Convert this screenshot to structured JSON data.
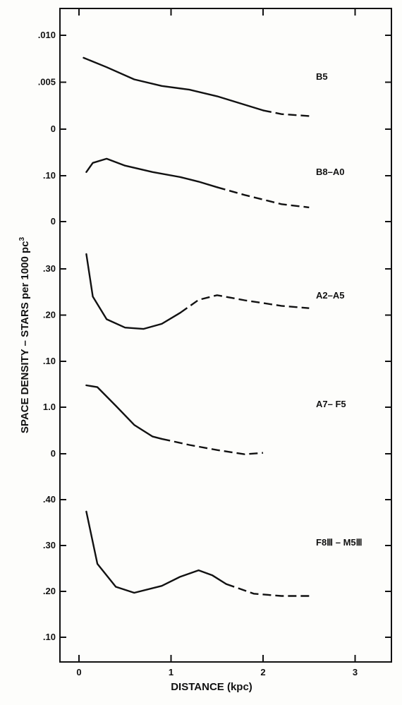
{
  "chart_data": {
    "type": "line",
    "xlabel": "DISTANCE (kpc)",
    "ylabel": "SPACE DENSITY – STARS per 1000 pc",
    "ylabel_superscript": "3",
    "xlim": [
      -0.05,
      3.4
    ],
    "x_ticks": [
      "0",
      "1",
      "2",
      "3"
    ],
    "panels": [
      {
        "name": "B5",
        "ylim": [
          0,
          0.0105
        ],
        "y_ticks": [
          {
            "value": 0.01,
            "label": ".010"
          },
          {
            "value": 0.005,
            "label": ".005"
          },
          {
            "value": 0,
            "label": "0"
          }
        ],
        "solid": [
          [
            0.05,
            0.0076
          ],
          [
            0.3,
            0.0066
          ],
          [
            0.6,
            0.0053
          ],
          [
            0.9,
            0.0046
          ],
          [
            1.2,
            0.0042
          ],
          [
            1.5,
            0.0035
          ],
          [
            1.8,
            0.0026
          ],
          [
            2.0,
            0.002
          ]
        ],
        "dashed": [
          [
            2.0,
            0.002
          ],
          [
            2.2,
            0.0016
          ],
          [
            2.5,
            0.0014
          ]
        ]
      },
      {
        "name": "B8–A0",
        "ylim": [
          0,
          0.18
        ],
        "y_ticks": [
          {
            "value": 0.1,
            "label": ".10"
          },
          {
            "value": 0,
            "label": "0"
          }
        ],
        "solid": [
          [
            0.08,
            0.108
          ],
          [
            0.15,
            0.128
          ],
          [
            0.3,
            0.137
          ],
          [
            0.5,
            0.122
          ],
          [
            0.8,
            0.108
          ],
          [
            1.1,
            0.097
          ],
          [
            1.3,
            0.087
          ],
          [
            1.5,
            0.075
          ]
        ],
        "dashed": [
          [
            1.5,
            0.075
          ],
          [
            1.8,
            0.058
          ],
          [
            2.2,
            0.038
          ],
          [
            2.5,
            0.031
          ]
        ]
      },
      {
        "name": "A2–A5",
        "ylim": [
          0.1,
          0.33
        ],
        "y_ticks": [
          {
            "value": 0.3,
            "label": ".30"
          },
          {
            "value": 0.2,
            "label": ".20"
          },
          {
            "value": 0.1,
            "label": ".10"
          }
        ],
        "solid": [
          [
            0.08,
            0.332
          ],
          [
            0.15,
            0.24
          ],
          [
            0.3,
            0.191
          ],
          [
            0.5,
            0.173
          ],
          [
            0.7,
            0.17
          ],
          [
            0.9,
            0.181
          ],
          [
            1.1,
            0.205
          ]
        ],
        "dashed": [
          [
            1.1,
            0.205
          ],
          [
            1.3,
            0.233
          ],
          [
            1.5,
            0.243
          ],
          [
            1.8,
            0.232
          ],
          [
            2.2,
            0.22
          ],
          [
            2.5,
            0.215
          ]
        ]
      },
      {
        "name": "A7– F5",
        "ylim": [
          -0.3,
          1.5
        ],
        "y_ticks": [
          {
            "value": 1.0,
            "label": "1.0"
          },
          {
            "value": 0,
            "label": "0"
          }
        ],
        "solid": [
          [
            0.08,
            1.47
          ],
          [
            0.2,
            1.43
          ],
          [
            0.4,
            1.03
          ],
          [
            0.6,
            0.62
          ],
          [
            0.8,
            0.37
          ],
          [
            0.9,
            0.32
          ]
        ],
        "dashed": [
          [
            0.9,
            0.32
          ],
          [
            1.2,
            0.19
          ],
          [
            1.5,
            0.08
          ],
          [
            1.8,
            -0.01
          ],
          [
            2.0,
            0.02
          ]
        ]
      },
      {
        "name": "F8Ⅲ – M5Ⅲ",
        "ylim": [
          0.05,
          0.43
        ],
        "y_ticks": [
          {
            "value": 0.4,
            "label": ".40"
          },
          {
            "value": 0.3,
            "label": ".30"
          },
          {
            "value": 0.2,
            "label": ".20"
          },
          {
            "value": 0.1,
            "label": ".10"
          }
        ],
        "solid": [
          [
            0.08,
            0.374
          ],
          [
            0.2,
            0.26
          ],
          [
            0.4,
            0.21
          ],
          [
            0.6,
            0.197
          ],
          [
            0.9,
            0.212
          ],
          [
            1.1,
            0.232
          ],
          [
            1.3,
            0.246
          ],
          [
            1.45,
            0.235
          ],
          [
            1.6,
            0.216
          ]
        ],
        "dashed": [
          [
            1.6,
            0.216
          ],
          [
            1.9,
            0.195
          ],
          [
            2.2,
            0.19
          ],
          [
            2.5,
            0.19
          ]
        ]
      }
    ]
  }
}
